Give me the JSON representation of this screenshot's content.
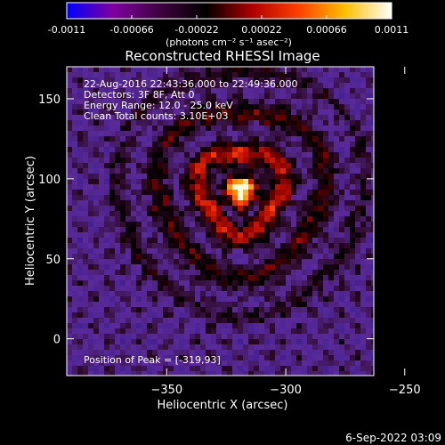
{
  "colorbar": {
    "ticks": [
      "-0.0011",
      "-0.00066",
      "-0.00022",
      "0.00022",
      "0.00066",
      "0.0011"
    ],
    "units_label": "(photons cm⁻² s⁻¹ asec⁻²)",
    "colors": [
      "#0000ff",
      "#8000a0",
      "#400040",
      "#000000",
      "#b00000",
      "#ff4000",
      "#ffc000",
      "#ffffff"
    ]
  },
  "chart_data": {
    "type": "heatmap",
    "title": "Reconstructed RHESSI Image",
    "xlabel": "Heliocentric X (arcsec)",
    "ylabel": "Heliocentric Y (arcsec)",
    "xlim": [
      -392,
      -263
    ],
    "ylim": [
      -23,
      170
    ],
    "xticks": [
      -350,
      -300,
      -250
    ],
    "yticks": [
      0,
      50,
      100,
      150
    ],
    "value_range": [
      -0.0011,
      0.0011
    ],
    "peak": {
      "x": -319,
      "y": 93
    },
    "annotations": [
      "22-Aug-2016 22:43:36.000 to 22:49:36.000",
      "Detectors: 3F 8F, Att 0",
      "Energy Range: 12.0 - 25.0 keV",
      "Clean    Total counts: 3.10E+03",
      "Position of Peak = [-319,93]"
    ]
  },
  "footer_timestamp": "6-Sep-2022 03:09"
}
